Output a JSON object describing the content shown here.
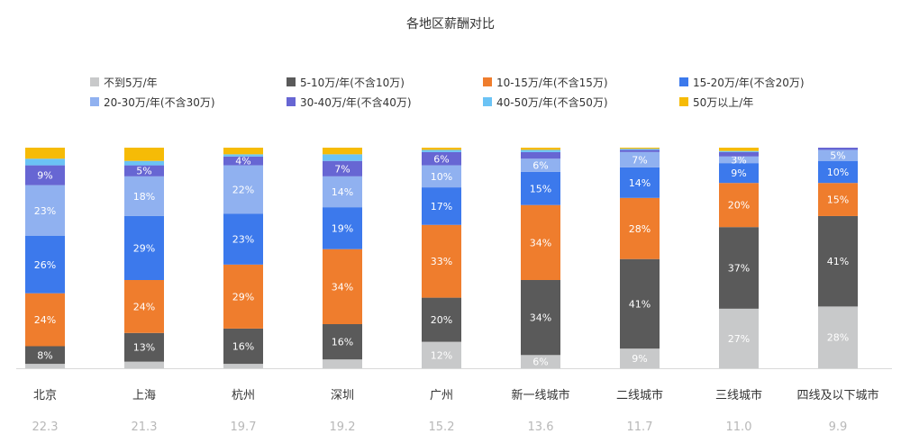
{
  "chart_data": {
    "type": "bar",
    "stacked": true,
    "percent_stacked": true,
    "title": "各地区薪酬对比",
    "categories": [
      "北京",
      "上海",
      "杭州",
      "深圳",
      "广州",
      "新一线城市",
      "二线城市",
      "三线城市",
      "四线及以下城市"
    ],
    "category_values": [
      "22.3",
      "21.3",
      "19.7",
      "19.2",
      "15.2",
      "13.6",
      "11.7",
      "11.0",
      "9.9"
    ],
    "legend_position": "top",
    "series": [
      {
        "name": "不到5万/年",
        "color": "#c8c9ca",
        "values": [
          2,
          3,
          2,
          4,
          12,
          6,
          9,
          27,
          28
        ],
        "labels": [
          "",
          "",
          "",
          "",
          "12%",
          "6%",
          "9%",
          "27%",
          "28%"
        ]
      },
      {
        "name": "5-10万/年(不含10万)",
        "color": "#5a5a5a",
        "values": [
          8,
          13,
          16,
          16,
          20,
          34,
          41,
          37,
          41
        ],
        "labels": [
          "8%",
          "13%",
          "16%",
          "16%",
          "20%",
          "34%",
          "41%",
          "37%",
          "41%"
        ]
      },
      {
        "name": "10-15万/年(不含15万)",
        "color": "#ef7d2d",
        "values": [
          24,
          24,
          29,
          34,
          33,
          34,
          28,
          20,
          15
        ],
        "labels": [
          "24%",
          "24%",
          "29%",
          "34%",
          "33%",
          "34%",
          "28%",
          "20%",
          "15%"
        ]
      },
      {
        "name": "15-20万/年(不含20万)",
        "color": "#3c79ec",
        "values": [
          26,
          29,
          23,
          19,
          17,
          15,
          14,
          9,
          10
        ],
        "labels": [
          "26%",
          "29%",
          "23%",
          "19%",
          "17%",
          "15%",
          "14%",
          "9%",
          "10%"
        ]
      },
      {
        "name": "20-30万/年(不含30万)",
        "color": "#90b1f0",
        "values": [
          23,
          18,
          22,
          14,
          10,
          6,
          7,
          3,
          5
        ],
        "labels": [
          "23%",
          "18%",
          "22%",
          "14%",
          "10%",
          "6%",
          "7%",
          "3%",
          "5%"
        ]
      },
      {
        "name": "30-40万/年(不含40万)",
        "color": "#6766d3",
        "values": [
          9,
          5,
          4,
          7,
          6,
          3,
          1,
          2,
          1
        ],
        "labels": [
          "9%",
          "5%",
          "4%",
          "7%",
          "6%",
          "",
          "",
          "",
          ""
        ]
      },
      {
        "name": "40-50万/年(不含50万)",
        "color": "#6bc3f5",
        "values": [
          3,
          2,
          1,
          3,
          1,
          1,
          0.5,
          0.5,
          0
        ],
        "labels": [
          "",
          "",
          "",
          "",
          "",
          "",
          "",
          "",
          ""
        ]
      },
      {
        "name": "50万以上/年",
        "color": "#f6bb06",
        "values": [
          5,
          6,
          3,
          3,
          1,
          1,
          0.5,
          1.5,
          0
        ],
        "labels": [
          "",
          "",
          "",
          "",
          "",
          "",
          "",
          "",
          ""
        ]
      }
    ]
  }
}
